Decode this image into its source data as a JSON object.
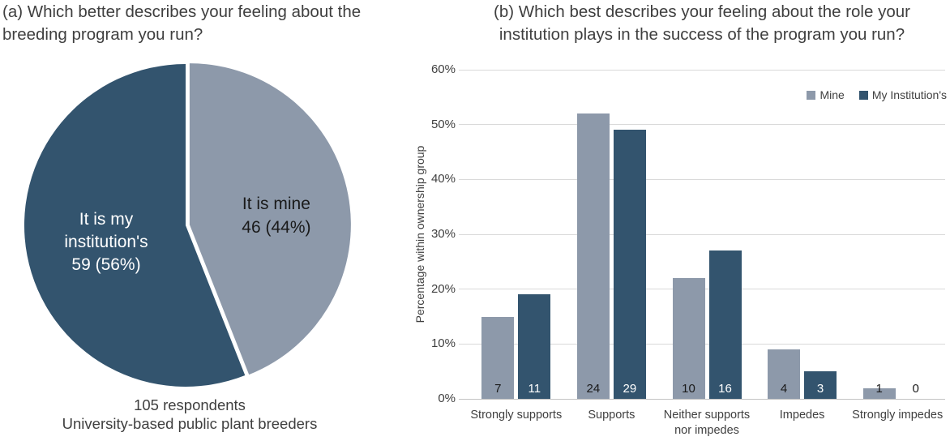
{
  "panel_a": {
    "title_lines": [
      "(a) Which better describes your feeling about the",
      "breeding program you run?"
    ],
    "caption_lines": [
      "105 respondents",
      "University-based public plant breeders"
    ]
  },
  "panel_b": {
    "title_lines": [
      "(b) Which best describes your feeling about the role your",
      "institution plays in the success of the program you run?"
    ]
  },
  "colors": {
    "accent_dark": "#33546E",
    "accent_light": "#8D99AA",
    "grid": "#d9d9d9",
    "axis": "#c3c3c3",
    "text": "#404040"
  },
  "chart_data": [
    {
      "type": "pie",
      "title": "(a) Which better describes your feeling about the breeding program you run?",
      "footnote": "105 respondents, University-based public plant breeders",
      "total_respondents": 105,
      "start_angle_deg": 0,
      "direction": "clockwise",
      "slices": [
        {
          "label": "It is mine",
          "count": 46,
          "percent": 44,
          "color": "#8D99AA",
          "text_color": "#1a1a1a",
          "label_lines": [
            "It is mine",
            "46 (44%)"
          ],
          "exploded": true
        },
        {
          "label": "It is my institution's",
          "count": 59,
          "percent": 56,
          "color": "#33546E",
          "text_color": "#ffffff",
          "label_lines": [
            "It is my",
            "institution's",
            "59 (56%)"
          ],
          "exploded": false
        }
      ]
    },
    {
      "type": "bar",
      "title": "(b) Which best describes your feeling about the role your institution plays in the success of the program you run?",
      "ylabel": "Percentage within ownership group",
      "ylim": [
        0,
        60
      ],
      "yticks": [
        "0%",
        "10%",
        "20%",
        "30%",
        "40%",
        "50%",
        "60%"
      ],
      "grid": true,
      "legend_position": "top-right",
      "categories": [
        [
          "Strongly supports"
        ],
        [
          "Supports"
        ],
        [
          "Neither supports",
          "nor impedes"
        ],
        [
          "Impedes"
        ],
        [
          "Strongly impedes"
        ]
      ],
      "series": [
        {
          "name": "Mine",
          "color": "#8D99AA",
          "label_color": "#1a1a1a",
          "values_percent": [
            15,
            52,
            22,
            9,
            2
          ],
          "counts": [
            7,
            24,
            10,
            4,
            1
          ]
        },
        {
          "name": "My Institution's",
          "color": "#33546E",
          "label_color": "#ffffff",
          "values_percent": [
            19,
            49,
            27,
            5,
            0
          ],
          "counts": [
            11,
            29,
            16,
            3,
            0
          ]
        }
      ]
    }
  ]
}
